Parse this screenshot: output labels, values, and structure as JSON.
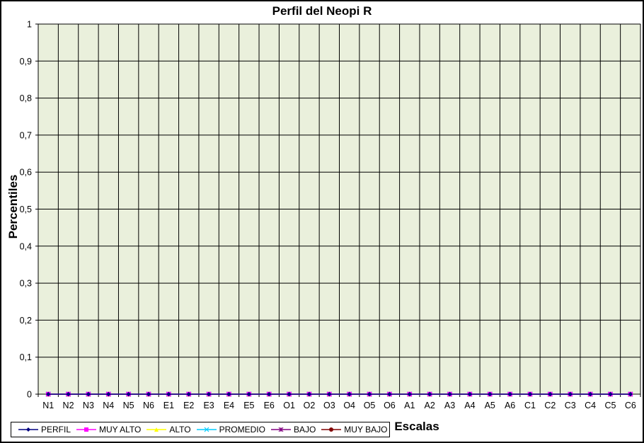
{
  "chart_data": {
    "type": "line",
    "title": "Perfil del Neopi R",
    "xlabel": "Escalas",
    "ylabel": "Percentiles",
    "categories": [
      "N1",
      "N2",
      "N3",
      "N4",
      "N5",
      "N6",
      "E1",
      "E2",
      "E3",
      "E4",
      "E5",
      "E6",
      "O1",
      "O2",
      "O3",
      "O4",
      "O5",
      "O6",
      "A1",
      "A2",
      "A3",
      "A4",
      "A5",
      "A6",
      "C1",
      "C2",
      "C3",
      "C4",
      "C5",
      "C6"
    ],
    "yticks": [
      "0",
      "0,1",
      "0,2",
      "0,3",
      "0,4",
      "0,5",
      "0,6",
      "0,7",
      "0,8",
      "0,9",
      "1"
    ],
    "ylim": [
      0,
      1
    ],
    "grid": true,
    "legend_position": "bottom-left",
    "series": [
      {
        "name": "PERFIL",
        "color": "#000080",
        "marker": "diamond",
        "values": [
          0,
          0,
          0,
          0,
          0,
          0,
          0,
          0,
          0,
          0,
          0,
          0,
          0,
          0,
          0,
          0,
          0,
          0,
          0,
          0,
          0,
          0,
          0,
          0,
          0,
          0,
          0,
          0,
          0,
          0
        ]
      },
      {
        "name": "MUY ALTO",
        "color": "#ff00ff",
        "marker": "square",
        "values": [
          0,
          0,
          0,
          0,
          0,
          0,
          0,
          0,
          0,
          0,
          0,
          0,
          0,
          0,
          0,
          0,
          0,
          0,
          0,
          0,
          0,
          0,
          0,
          0,
          0,
          0,
          0,
          0,
          0,
          0
        ]
      },
      {
        "name": "ALTO",
        "color": "#ffff00",
        "marker": "triangle",
        "values": [
          0,
          0,
          0,
          0,
          0,
          0,
          0,
          0,
          0,
          0,
          0,
          0,
          0,
          0,
          0,
          0,
          0,
          0,
          0,
          0,
          0,
          0,
          0,
          0,
          0,
          0,
          0,
          0,
          0,
          0
        ]
      },
      {
        "name": "PROMEDIO",
        "color": "#00ccff",
        "marker": "x",
        "values": [
          0,
          0,
          0,
          0,
          0,
          0,
          0,
          0,
          0,
          0,
          0,
          0,
          0,
          0,
          0,
          0,
          0,
          0,
          0,
          0,
          0,
          0,
          0,
          0,
          0,
          0,
          0,
          0,
          0,
          0
        ]
      },
      {
        "name": "BAJO",
        "color": "#800080",
        "marker": "star",
        "values": [
          0,
          0,
          0,
          0,
          0,
          0,
          0,
          0,
          0,
          0,
          0,
          0,
          0,
          0,
          0,
          0,
          0,
          0,
          0,
          0,
          0,
          0,
          0,
          0,
          0,
          0,
          0,
          0,
          0,
          0
        ]
      },
      {
        "name": "MUY BAJO",
        "color": "#800000",
        "marker": "circle",
        "values": [
          0,
          0,
          0,
          0,
          0,
          0,
          0,
          0,
          0,
          0,
          0,
          0,
          0,
          0,
          0,
          0,
          0,
          0,
          0,
          0,
          0,
          0,
          0,
          0,
          0,
          0,
          0,
          0,
          0,
          0
        ]
      }
    ],
    "colors": {
      "plot_background": "#eaf0dc",
      "gridline": "#000000"
    }
  }
}
